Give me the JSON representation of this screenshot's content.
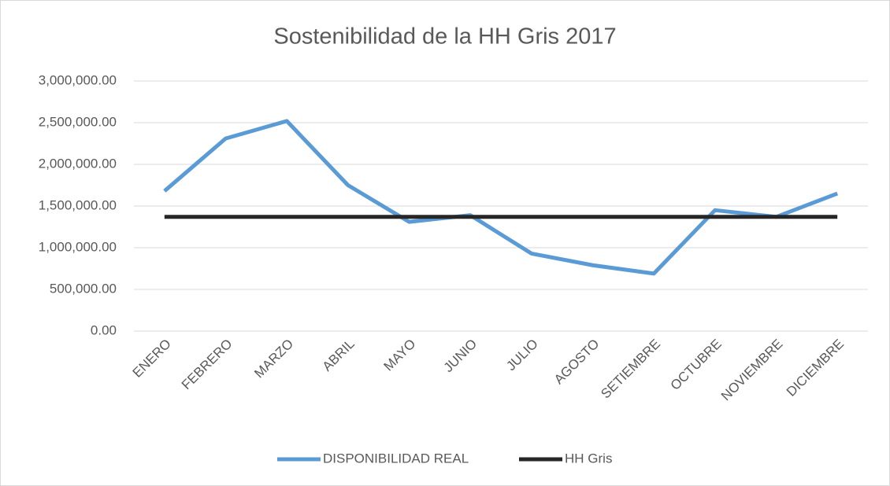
{
  "chart_data": {
    "type": "line",
    "title": "Sostenibilidad de la HH Gris 2017",
    "categories": [
      "ENERO",
      "FEBRERO",
      "MARZO",
      "ABRIL",
      "MAYO",
      "JUNIO",
      "JULIO",
      "AGOSTO",
      "SETIEMBRE",
      "OCTUBRE",
      "NOVIEMBRE",
      "DICIEMBRE"
    ],
    "series": [
      {
        "name": "DISPONIBILIDAD REAL",
        "color": "#5b9bd5",
        "values": [
          1680000,
          2310000,
          2520000,
          1750000,
          1310000,
          1390000,
          930000,
          790000,
          690000,
          1450000,
          1370000,
          1650000
        ]
      },
      {
        "name": "HH Gris",
        "color": "#262626",
        "values": [
          1370000,
          1370000,
          1370000,
          1370000,
          1370000,
          1370000,
          1370000,
          1370000,
          1370000,
          1370000,
          1370000,
          1370000
        ]
      }
    ],
    "ylim": [
      0,
      3000000
    ],
    "yticks": [
      {
        "value": 0,
        "label": "0.00"
      },
      {
        "value": 500000,
        "label": "500,000.00"
      },
      {
        "value": 1000000,
        "label": "1,000,000.00"
      },
      {
        "value": 1500000,
        "label": "1,500,000.00"
      },
      {
        "value": 2000000,
        "label": "2,000,000.00"
      },
      {
        "value": 2500000,
        "label": "2,500,000.00"
      },
      {
        "value": 3000000,
        "label": "3,000,000.00"
      }
    ],
    "grid": true,
    "legend": "bottom"
  }
}
